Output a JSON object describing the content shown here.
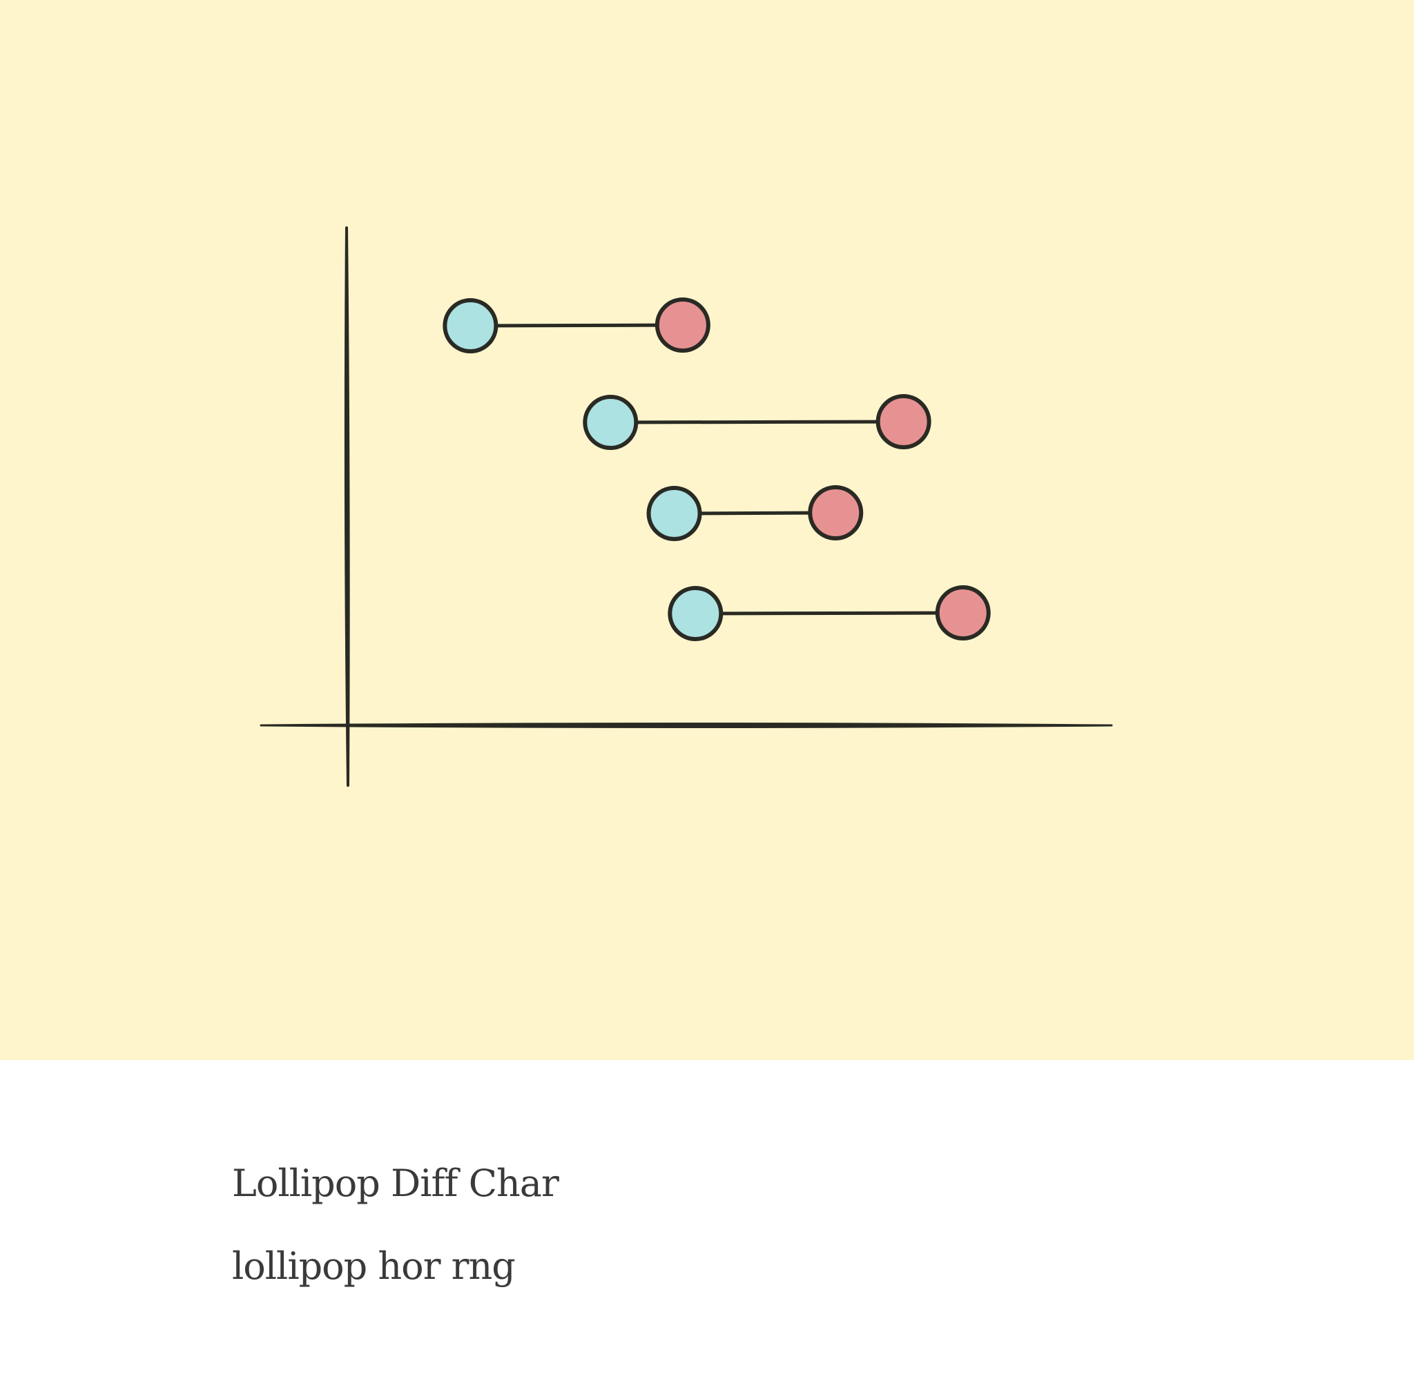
{
  "card": {
    "title": "Lollipop Diff Char",
    "subtitle": "lollipop hor rng"
  },
  "colors": {
    "background": "#fef5cc",
    "start_dot": "#ace2e1",
    "end_dot": "#e79292",
    "ink": "#2a2a24"
  },
  "icon": {
    "name": "lollipop-range-chart-illustration",
    "rows": [
      {
        "start": 1.45,
        "end": 3.95
      },
      {
        "start": 3.1,
        "end": 6.55
      },
      {
        "start": 3.85,
        "end": 5.75
      },
      {
        "start": 4.1,
        "end": 7.25
      }
    ],
    "x_range": [
      0,
      9
    ]
  }
}
